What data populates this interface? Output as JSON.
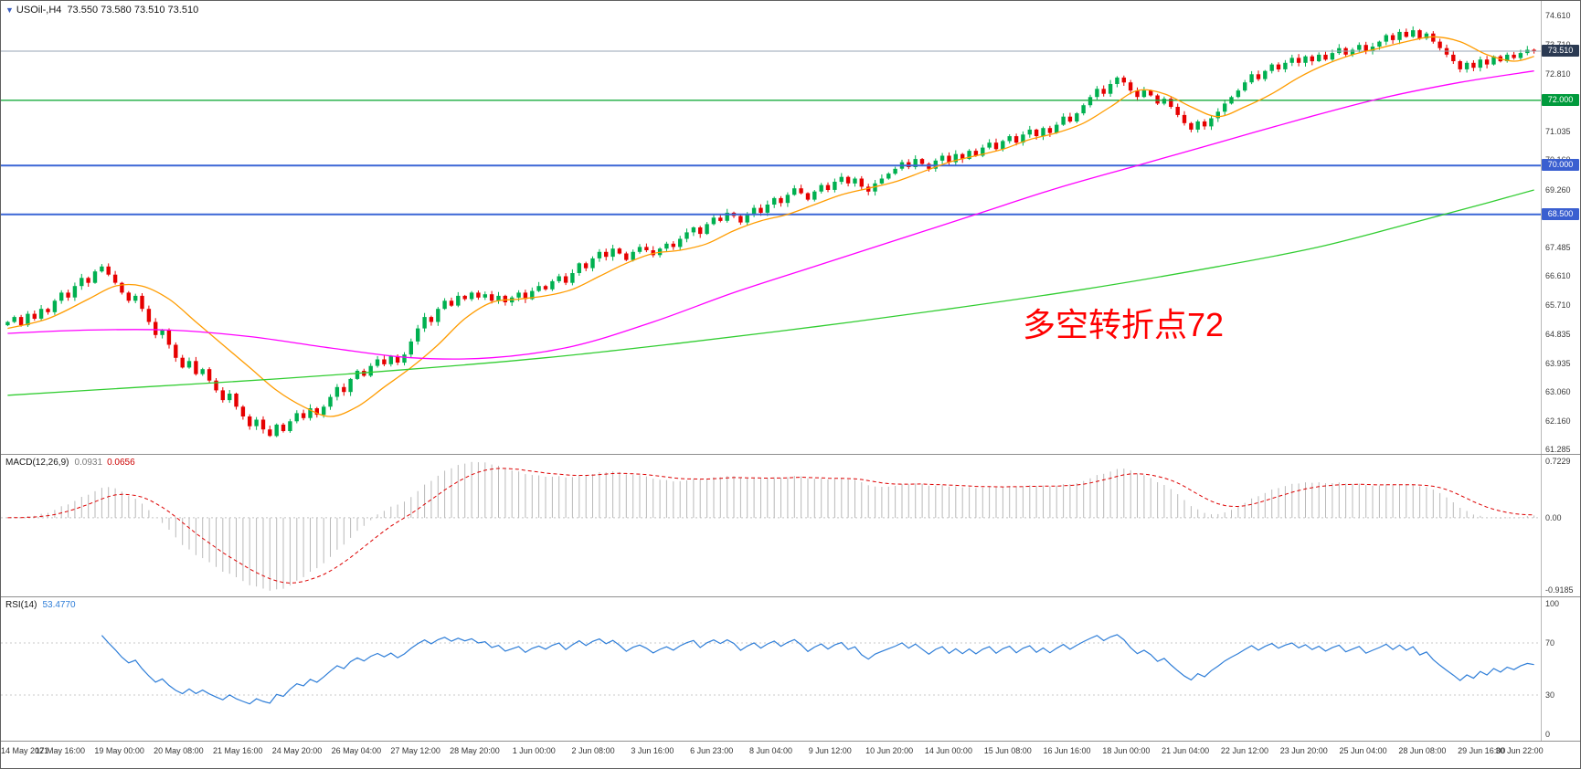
{
  "header": {
    "icon": "▼",
    "symbol": "USOil-,H4",
    "ohlc": "73.550 73.580 73.510 73.510"
  },
  "annotation": {
    "text": "多空转折点72",
    "color": "#ff0000"
  },
  "price_axis": {
    "ticks": [
      "74.610",
      "73.710",
      "72.810",
      "71.035",
      "70.160",
      "69.260",
      "67.485",
      "66.610",
      "65.710",
      "64.835",
      "63.935",
      "63.060",
      "62.160",
      "61.285"
    ],
    "badges": [
      {
        "label": "73.510",
        "price": 73.51,
        "bg": "#2b3a52",
        "kind": "bid"
      },
      {
        "label": "72.000",
        "price": 72.0,
        "bg": "#009a3c",
        "kind": "hline"
      },
      {
        "label": "70.000",
        "price": 70.0,
        "bg": "#3a5fd0",
        "kind": "hline"
      },
      {
        "label": "68.500",
        "price": 68.5,
        "bg": "#3a5fd0",
        "kind": "hline"
      }
    ]
  },
  "hlines": [
    {
      "price": 73.51,
      "color": "#97a5b4",
      "width": 1
    },
    {
      "price": 72.0,
      "color": "#18ab3e",
      "width": 1.4
    },
    {
      "price": 70.0,
      "color": "#3c66d6",
      "width": 2
    },
    {
      "price": 68.5,
      "color": "#3c66d6",
      "width": 2
    }
  ],
  "macd_panel": {
    "name": "MACD(12,26,9)",
    "macd_value": "0.0931",
    "signal_value": "0.0656",
    "fast": 12,
    "slow": 26,
    "signal_period": 9,
    "axis": [
      "0.7229",
      "0.00",
      "-0.9185"
    ],
    "histogram_color": "#b9b9b9",
    "signal_color": "#dd0000"
  },
  "rsi_panel": {
    "name": "RSI(14)",
    "value": "53.4770",
    "period": 14,
    "axis": [
      "100",
      "70",
      "30",
      "0"
    ],
    "levels": [
      70,
      30
    ],
    "line_color": "#2f7ed8"
  },
  "time_axis": {
    "labels": [
      "14 May 2021",
      "17 May 16:00",
      "19 May 00:00",
      "20 May 08:00",
      "21 May 16:00",
      "24 May 20:00",
      "26 May 04:00",
      "27 May 12:00",
      "28 May 20:00",
      "1 Jun 00:00",
      "2 Jun 08:00",
      "3 Jun 16:00",
      "6 Jun 23:00",
      "8 Jun 04:00",
      "9 Jun 12:00",
      "10 Jun 20:00",
      "14 Jun 00:00",
      "15 Jun 08:00",
      "16 Jun 16:00",
      "18 Jun 00:00",
      "21 Jun 04:00",
      "22 Jun 12:00",
      "23 Jun 20:00",
      "25 Jun 04:00",
      "28 Jun 08:00",
      "29 Jun 16:00",
      "30 Jun 22:00"
    ]
  },
  "chart_data": {
    "type": "candlestick",
    "symbol": "USOil",
    "timeframe": "H4",
    "ylim": [
      61.15,
      75.05
    ],
    "up_color": "#00b050",
    "down_color": "#e60000",
    "open_first": 65.1,
    "closes": [
      65.2,
      65.35,
      65.1,
      65.45,
      65.3,
      65.6,
      65.5,
      65.85,
      66.1,
      65.95,
      66.3,
      66.55,
      66.4,
      66.75,
      66.9,
      66.65,
      66.4,
      66.1,
      65.85,
      66.0,
      65.6,
      65.2,
      64.8,
      64.95,
      64.5,
      64.1,
      63.8,
      64.0,
      63.6,
      63.75,
      63.4,
      63.1,
      62.8,
      63.0,
      62.6,
      62.3,
      62.0,
      62.2,
      61.9,
      61.7,
      62.05,
      61.85,
      62.15,
      62.4,
      62.25,
      62.55,
      62.35,
      62.6,
      62.9,
      63.2,
      63.05,
      63.45,
      63.7,
      63.55,
      63.85,
      64.05,
      63.9,
      64.15,
      63.95,
      64.2,
      64.6,
      65.0,
      65.35,
      65.2,
      65.6,
      65.85,
      65.7,
      66.0,
      65.9,
      66.1,
      65.95,
      66.05,
      65.85,
      66.0,
      65.8,
      65.95,
      66.1,
      65.9,
      66.15,
      66.3,
      66.2,
      66.45,
      66.6,
      66.4,
      66.7,
      67.0,
      66.85,
      67.15,
      67.35,
      67.2,
      67.45,
      67.3,
      67.1,
      67.35,
      67.5,
      67.4,
      67.25,
      67.45,
      67.6,
      67.5,
      67.75,
      67.95,
      68.1,
      67.9,
      68.2,
      68.4,
      68.3,
      68.55,
      68.45,
      68.25,
      68.5,
      68.7,
      68.55,
      68.8,
      69.0,
      68.85,
      69.1,
      69.3,
      69.15,
      68.95,
      69.2,
      69.4,
      69.25,
      69.5,
      69.65,
      69.45,
      69.6,
      69.35,
      69.2,
      69.45,
      69.6,
      69.75,
      69.9,
      70.1,
      69.95,
      70.2,
      70.05,
      69.9,
      70.15,
      70.3,
      70.1,
      70.35,
      70.2,
      70.45,
      70.3,
      70.55,
      70.7,
      70.5,
      70.75,
      70.9,
      70.7,
      70.95,
      71.1,
      70.9,
      71.15,
      71.0,
      71.25,
      71.5,
      71.35,
      71.6,
      71.85,
      72.1,
      72.35,
      72.2,
      72.5,
      72.7,
      72.55,
      72.3,
      72.1,
      72.3,
      72.15,
      71.9,
      72.05,
      71.8,
      71.55,
      71.3,
      71.1,
      71.35,
      71.2,
      71.45,
      71.65,
      71.9,
      72.1,
      72.3,
      72.55,
      72.8,
      72.65,
      72.9,
      73.1,
      72.95,
      73.15,
      73.3,
      73.15,
      73.35,
      73.2,
      73.4,
      73.25,
      73.45,
      73.6,
      73.4,
      73.55,
      73.7,
      73.5,
      73.65,
      73.8,
      74.0,
      73.85,
      74.1,
      73.95,
      74.15,
      73.9,
      74.05,
      73.8,
      73.6,
      73.4,
      73.2,
      72.95,
      73.15,
      73.0,
      73.25,
      73.1,
      73.35,
      73.2,
      73.4,
      73.3,
      73.45,
      73.55,
      73.51
    ],
    "moving_averages": [
      {
        "name": "ma-fast",
        "color": "#ff9c00",
        "points": [
          [
            0,
            65.0
          ],
          [
            6,
            65.3
          ],
          [
            12,
            65.9
          ],
          [
            16,
            66.3
          ],
          [
            20,
            66.3
          ],
          [
            24,
            65.9
          ],
          [
            28,
            65.2
          ],
          [
            32,
            64.5
          ],
          [
            36,
            63.8
          ],
          [
            40,
            63.1
          ],
          [
            44,
            62.6
          ],
          [
            48,
            62.3
          ],
          [
            52,
            62.6
          ],
          [
            56,
            63.2
          ],
          [
            60,
            63.8
          ],
          [
            64,
            64.5
          ],
          [
            68,
            65.3
          ],
          [
            72,
            65.8
          ],
          [
            76,
            65.9
          ],
          [
            80,
            66.0
          ],
          [
            84,
            66.2
          ],
          [
            88,
            66.6
          ],
          [
            92,
            67.0
          ],
          [
            96,
            67.3
          ],
          [
            100,
            67.4
          ],
          [
            104,
            67.6
          ],
          [
            108,
            68.0
          ],
          [
            112,
            68.3
          ],
          [
            116,
            68.5
          ],
          [
            120,
            68.8
          ],
          [
            124,
            69.1
          ],
          [
            128,
            69.3
          ],
          [
            132,
            69.5
          ],
          [
            136,
            69.8
          ],
          [
            140,
            70.1
          ],
          [
            144,
            70.3
          ],
          [
            148,
            70.5
          ],
          [
            152,
            70.8
          ],
          [
            156,
            71.0
          ],
          [
            160,
            71.3
          ],
          [
            164,
            71.8
          ],
          [
            168,
            72.3
          ],
          [
            172,
            72.2
          ],
          [
            176,
            71.8
          ],
          [
            180,
            71.5
          ],
          [
            184,
            71.8
          ],
          [
            188,
            72.2
          ],
          [
            192,
            72.7
          ],
          [
            196,
            73.1
          ],
          [
            200,
            73.4
          ],
          [
            204,
            73.6
          ],
          [
            208,
            73.8
          ],
          [
            212,
            73.95
          ],
          [
            216,
            73.8
          ],
          [
            220,
            73.4
          ],
          [
            224,
            73.2
          ],
          [
            227,
            73.35
          ]
        ]
      },
      {
        "name": "ma-mid",
        "color": "#ff00ff",
        "points": [
          [
            0,
            64.85
          ],
          [
            12,
            64.95
          ],
          [
            24,
            64.95
          ],
          [
            36,
            64.75
          ],
          [
            48,
            64.4
          ],
          [
            60,
            64.1
          ],
          [
            72,
            64.1
          ],
          [
            84,
            64.45
          ],
          [
            96,
            65.2
          ],
          [
            108,
            66.1
          ],
          [
            120,
            66.9
          ],
          [
            132,
            67.7
          ],
          [
            144,
            68.5
          ],
          [
            156,
            69.3
          ],
          [
            168,
            70.0
          ],
          [
            180,
            70.7
          ],
          [
            192,
            71.4
          ],
          [
            204,
            72.05
          ],
          [
            216,
            72.55
          ],
          [
            227,
            72.9
          ]
        ]
      },
      {
        "name": "ma-slow",
        "color": "#32cd32",
        "points": [
          [
            0,
            62.95
          ],
          [
            20,
            63.2
          ],
          [
            40,
            63.45
          ],
          [
            60,
            63.75
          ],
          [
            80,
            64.1
          ],
          [
            100,
            64.55
          ],
          [
            120,
            65.05
          ],
          [
            140,
            65.6
          ],
          [
            160,
            66.2
          ],
          [
            180,
            66.9
          ],
          [
            195,
            67.5
          ],
          [
            210,
            68.3
          ],
          [
            220,
            68.85
          ],
          [
            227,
            69.25
          ]
        ]
      }
    ]
  }
}
